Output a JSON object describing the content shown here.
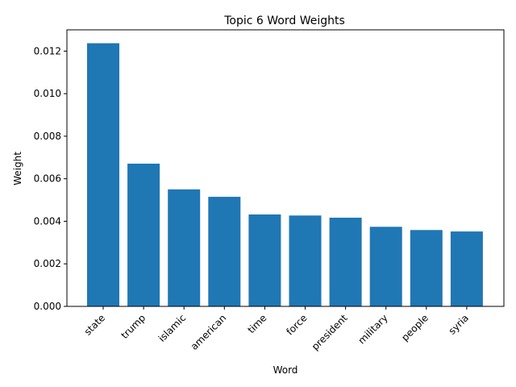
{
  "chart_data": {
    "type": "bar",
    "title": "Topic 6 Word Weights",
    "xlabel": "Word",
    "ylabel": "Weight",
    "categories": [
      "state",
      "trump",
      "islamic",
      "american",
      "time",
      "force",
      "president",
      "military",
      "people",
      "syria"
    ],
    "values": [
      0.01237,
      0.00671,
      0.0055,
      0.00515,
      0.00432,
      0.00427,
      0.00417,
      0.00374,
      0.00359,
      0.00352
    ],
    "ylim": [
      0,
      0.013
    ],
    "yticks": [
      "0.000",
      "0.002",
      "0.004",
      "0.006",
      "0.008",
      "0.010",
      "0.012"
    ],
    "bar_color": "#1f77b4",
    "grid": false,
    "legend": "none"
  }
}
